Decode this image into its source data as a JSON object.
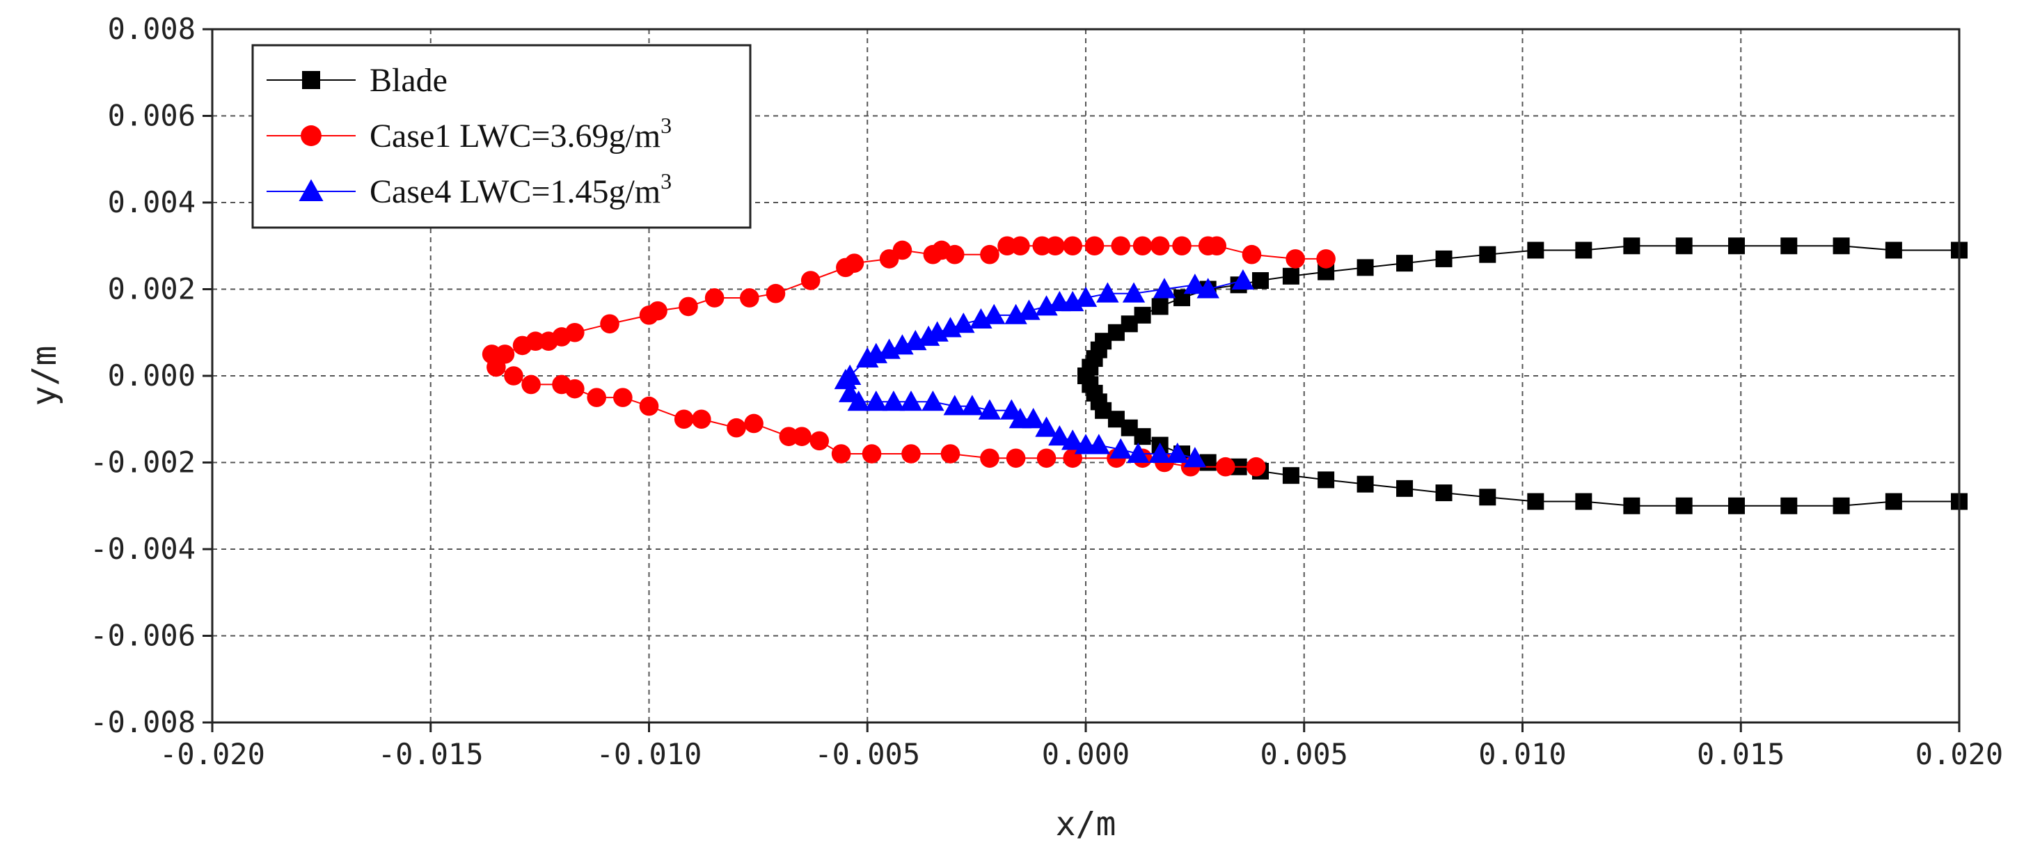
{
  "chart_data": {
    "type": "scatter",
    "title": "",
    "xlabel": "x/m",
    "ylabel": "y/m",
    "xlim": [
      -0.02,
      0.02
    ],
    "ylim": [
      -0.008,
      0.008
    ],
    "xticks": [
      "-0.020",
      "-0.015",
      "-0.010",
      "-0.005",
      "0.000",
      "0.005",
      "0.010",
      "0.015",
      "0.020"
    ],
    "yticks": [
      "-0.008",
      "-0.006",
      "-0.004",
      "-0.002",
      "0.000",
      "0.002",
      "0.004",
      "0.006",
      "0.008"
    ],
    "grid": true,
    "legend_position": "top-left",
    "series": [
      {
        "name": "Blade",
        "label_main": "Blade",
        "label_sup": "",
        "marker": "square",
        "color": "#000000",
        "points": [
          [
            0.0,
            0.0
          ],
          [
            0.0001,
            0.0002
          ],
          [
            0.0001,
            -0.0002
          ],
          [
            0.0002,
            0.0004
          ],
          [
            0.0002,
            -0.0004
          ],
          [
            0.0003,
            0.0006
          ],
          [
            0.0003,
            -0.0006
          ],
          [
            0.0004,
            0.0008
          ],
          [
            0.0004,
            -0.0008
          ],
          [
            0.0007,
            0.001
          ],
          [
            0.0007,
            -0.001
          ],
          [
            0.001,
            0.0012
          ],
          [
            0.001,
            -0.0012
          ],
          [
            0.0013,
            0.0014
          ],
          [
            0.0013,
            -0.0014
          ],
          [
            0.0017,
            0.0016
          ],
          [
            0.0017,
            -0.0016
          ],
          [
            0.0022,
            0.0018
          ],
          [
            0.0022,
            -0.0018
          ],
          [
            0.0028,
            0.002
          ],
          [
            0.0028,
            -0.002
          ],
          [
            0.0035,
            0.0021
          ],
          [
            0.0035,
            -0.0021
          ],
          [
            0.004,
            0.0022
          ],
          [
            0.004,
            -0.0022
          ],
          [
            0.0047,
            0.0023
          ],
          [
            0.0047,
            -0.0023
          ],
          [
            0.0055,
            0.0024
          ],
          [
            0.0055,
            -0.0024
          ],
          [
            0.0064,
            0.0025
          ],
          [
            0.0064,
            -0.0025
          ],
          [
            0.0073,
            0.0026
          ],
          [
            0.0073,
            -0.0026
          ],
          [
            0.0082,
            0.0027
          ],
          [
            0.0082,
            -0.0027
          ],
          [
            0.0092,
            0.0028
          ],
          [
            0.0092,
            -0.0028
          ],
          [
            0.0103,
            0.0029
          ],
          [
            0.0103,
            -0.0029
          ],
          [
            0.0114,
            0.0029
          ],
          [
            0.0114,
            -0.0029
          ],
          [
            0.0125,
            0.003
          ],
          [
            0.0125,
            -0.003
          ],
          [
            0.0137,
            0.003
          ],
          [
            0.0137,
            -0.003
          ],
          [
            0.0149,
            0.003
          ],
          [
            0.0149,
            -0.003
          ],
          [
            0.0161,
            0.003
          ],
          [
            0.0161,
            -0.003
          ],
          [
            0.0173,
            0.003
          ],
          [
            0.0173,
            -0.003
          ],
          [
            0.0185,
            0.0029
          ],
          [
            0.0185,
            -0.0029
          ],
          [
            0.02,
            0.0029
          ],
          [
            0.02,
            -0.0029
          ]
        ]
      },
      {
        "name": "Case1 LWC=3.69g/m3",
        "label_main": "Case1 LWC=3.69g/m",
        "label_sup": "3",
        "marker": "circle",
        "color": "#ff0000",
        "points": [
          [
            0.0055,
            0.0027
          ],
          [
            0.0048,
            0.0027
          ],
          [
            0.0038,
            0.0028
          ],
          [
            0.003,
            0.003
          ],
          [
            0.0028,
            0.003
          ],
          [
            0.0022,
            0.003
          ],
          [
            0.0017,
            0.003
          ],
          [
            0.0013,
            0.003
          ],
          [
            0.0008,
            0.003
          ],
          [
            0.0002,
            0.003
          ],
          [
            -0.0003,
            0.003
          ],
          [
            -0.0007,
            0.003
          ],
          [
            -0.001,
            0.003
          ],
          [
            -0.0015,
            0.003
          ],
          [
            -0.0018,
            0.003
          ],
          [
            -0.0022,
            0.0028
          ],
          [
            -0.003,
            0.0028
          ],
          [
            -0.0033,
            0.0029
          ],
          [
            -0.0035,
            0.0028
          ],
          [
            -0.0042,
            0.0029
          ],
          [
            -0.0045,
            0.0027
          ],
          [
            -0.0053,
            0.0026
          ],
          [
            -0.0055,
            0.0025
          ],
          [
            -0.0063,
            0.0022
          ],
          [
            -0.0071,
            0.0019
          ],
          [
            -0.0077,
            0.0018
          ],
          [
            -0.0085,
            0.0018
          ],
          [
            -0.0091,
            0.0016
          ],
          [
            -0.0098,
            0.0015
          ],
          [
            -0.01,
            0.0014
          ],
          [
            -0.0109,
            0.0012
          ],
          [
            -0.0117,
            0.001
          ],
          [
            -0.012,
            0.0009
          ],
          [
            -0.0123,
            0.0008
          ],
          [
            -0.0126,
            0.0008
          ],
          [
            -0.0129,
            0.0007
          ],
          [
            -0.0133,
            0.0005
          ],
          [
            -0.0136,
            0.0005
          ],
          [
            -0.0135,
            0.0002
          ],
          [
            -0.0131,
            0.0
          ],
          [
            -0.0127,
            -0.0002
          ],
          [
            -0.012,
            -0.0002
          ],
          [
            -0.0117,
            -0.0003
          ],
          [
            -0.0112,
            -0.0005
          ],
          [
            -0.0106,
            -0.0005
          ],
          [
            -0.01,
            -0.0007
          ],
          [
            -0.0092,
            -0.001
          ],
          [
            -0.0088,
            -0.001
          ],
          [
            -0.008,
            -0.0012
          ],
          [
            -0.0076,
            -0.0011
          ],
          [
            -0.0068,
            -0.0014
          ],
          [
            -0.0065,
            -0.0014
          ],
          [
            -0.0061,
            -0.0015
          ],
          [
            -0.0056,
            -0.0018
          ],
          [
            -0.0049,
            -0.0018
          ],
          [
            -0.004,
            -0.0018
          ],
          [
            -0.0031,
            -0.0018
          ],
          [
            -0.0022,
            -0.0019
          ],
          [
            -0.0016,
            -0.0019
          ],
          [
            -0.0009,
            -0.0019
          ],
          [
            -0.0003,
            -0.0019
          ],
          [
            0.0007,
            -0.0019
          ],
          [
            0.0013,
            -0.0019
          ],
          [
            0.0018,
            -0.002
          ],
          [
            0.0024,
            -0.0021
          ],
          [
            0.0032,
            -0.0021
          ],
          [
            0.0039,
            -0.0021
          ]
        ]
      },
      {
        "name": "Case4 LWC=1.45g/m3",
        "label_main": "Case4 LWC=1.45g/m",
        "label_sup": "3",
        "marker": "triangle",
        "color": "#0000ff",
        "points": [
          [
            0.0036,
            0.0022
          ],
          [
            0.0028,
            0.002
          ],
          [
            0.0025,
            0.0021
          ],
          [
            0.0018,
            0.002
          ],
          [
            0.0011,
            0.0019
          ],
          [
            0.0005,
            0.0019
          ],
          [
            0.0,
            0.0018
          ],
          [
            -0.0003,
            0.0017
          ],
          [
            -0.0006,
            0.0017
          ],
          [
            -0.0009,
            0.0016
          ],
          [
            -0.0013,
            0.0015
          ],
          [
            -0.0016,
            0.0014
          ],
          [
            -0.0021,
            0.0014
          ],
          [
            -0.0024,
            0.0013
          ],
          [
            -0.0028,
            0.0012
          ],
          [
            -0.0031,
            0.0011
          ],
          [
            -0.0034,
            0.001
          ],
          [
            -0.0036,
            0.0009
          ],
          [
            -0.0039,
            0.0008
          ],
          [
            -0.0042,
            0.0007
          ],
          [
            -0.0045,
            0.0006
          ],
          [
            -0.0048,
            0.0005
          ],
          [
            -0.005,
            0.0004
          ],
          [
            -0.0054,
            0.0
          ],
          [
            -0.0055,
            -0.0001
          ],
          [
            -0.0054,
            -0.0004
          ],
          [
            -0.0052,
            -0.0006
          ],
          [
            -0.0048,
            -0.0006
          ],
          [
            -0.0044,
            -0.0006
          ],
          [
            -0.004,
            -0.0006
          ],
          [
            -0.0035,
            -0.0006
          ],
          [
            -0.003,
            -0.0007
          ],
          [
            -0.0026,
            -0.0007
          ],
          [
            -0.0022,
            -0.0008
          ],
          [
            -0.0017,
            -0.0008
          ],
          [
            -0.0015,
            -0.001
          ],
          [
            -0.0012,
            -0.001
          ],
          [
            -0.0009,
            -0.0012
          ],
          [
            -0.0006,
            -0.0014
          ],
          [
            -0.0003,
            -0.0015
          ],
          [
            0.0,
            -0.0016
          ],
          [
            0.0003,
            -0.0016
          ],
          [
            0.0008,
            -0.0017
          ],
          [
            0.0012,
            -0.0018
          ],
          [
            0.0017,
            -0.0018
          ],
          [
            0.0021,
            -0.0018
          ],
          [
            0.0025,
            -0.0019
          ]
        ]
      }
    ]
  }
}
